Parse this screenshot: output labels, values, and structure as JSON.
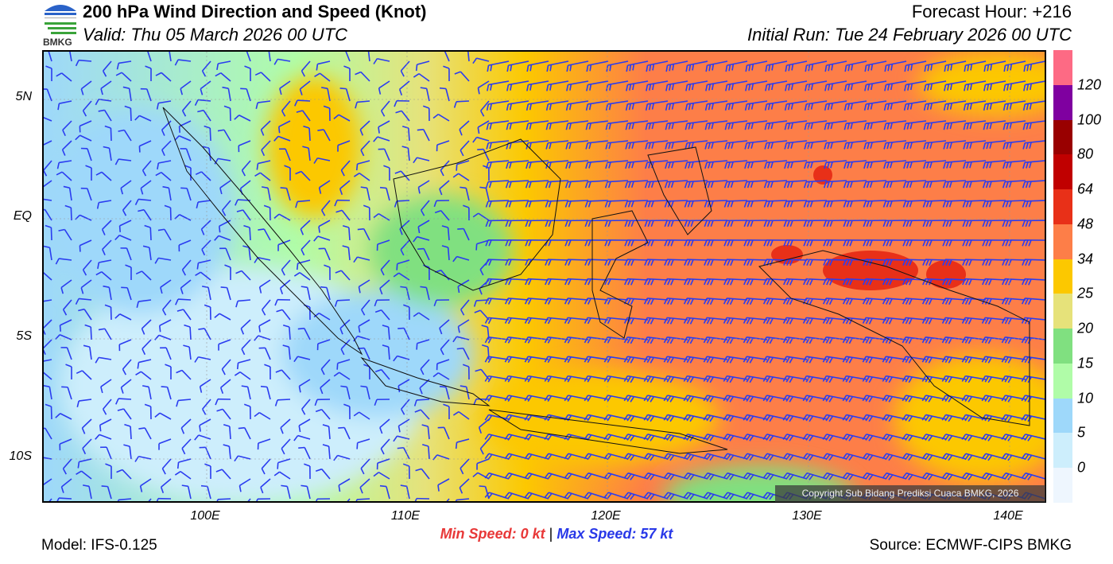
{
  "header": {
    "title": "200 hPa Wind Direction and Speed (Knot)",
    "valid": "Valid: Thu 05 March 2026 00 UTC",
    "forecast_hour": "Forecast Hour: +216",
    "initial_run": "Initial Run: Tue 24 February 2026 00 UTC",
    "logo_text": "BMKG"
  },
  "map": {
    "lat_labels": [
      "5N",
      "EQ",
      "5S",
      "10S"
    ],
    "lon_labels": [
      "100E",
      "110E",
      "120E",
      "130E",
      "140E"
    ],
    "copyright": "Copyright Sub Bidang Prediksi Cuaca BMKG, 2026"
  },
  "colorbar": {
    "labels": [
      "0",
      "5",
      "10",
      "15",
      "20",
      "25",
      "34",
      "48",
      "64",
      "80",
      "100",
      "120"
    ],
    "colors": [
      "#eef6fe",
      "#cdeefc",
      "#9ed8fa",
      "#b0fca8",
      "#80e080",
      "#e6e27a",
      "#fcc800",
      "#fd7e48",
      "#e83018",
      "#c00000",
      "#990000",
      "#7f00a0",
      "#fd6a84"
    ]
  },
  "footer": {
    "min_label": "Min Speed:",
    "min_value": "0 kt",
    "separator": "|",
    "max_label": "Max Speed:",
    "max_value": "57 kt",
    "model": "Model: IFS-0.125",
    "source": "Source: ECMWF-CIPS BMKG"
  }
}
